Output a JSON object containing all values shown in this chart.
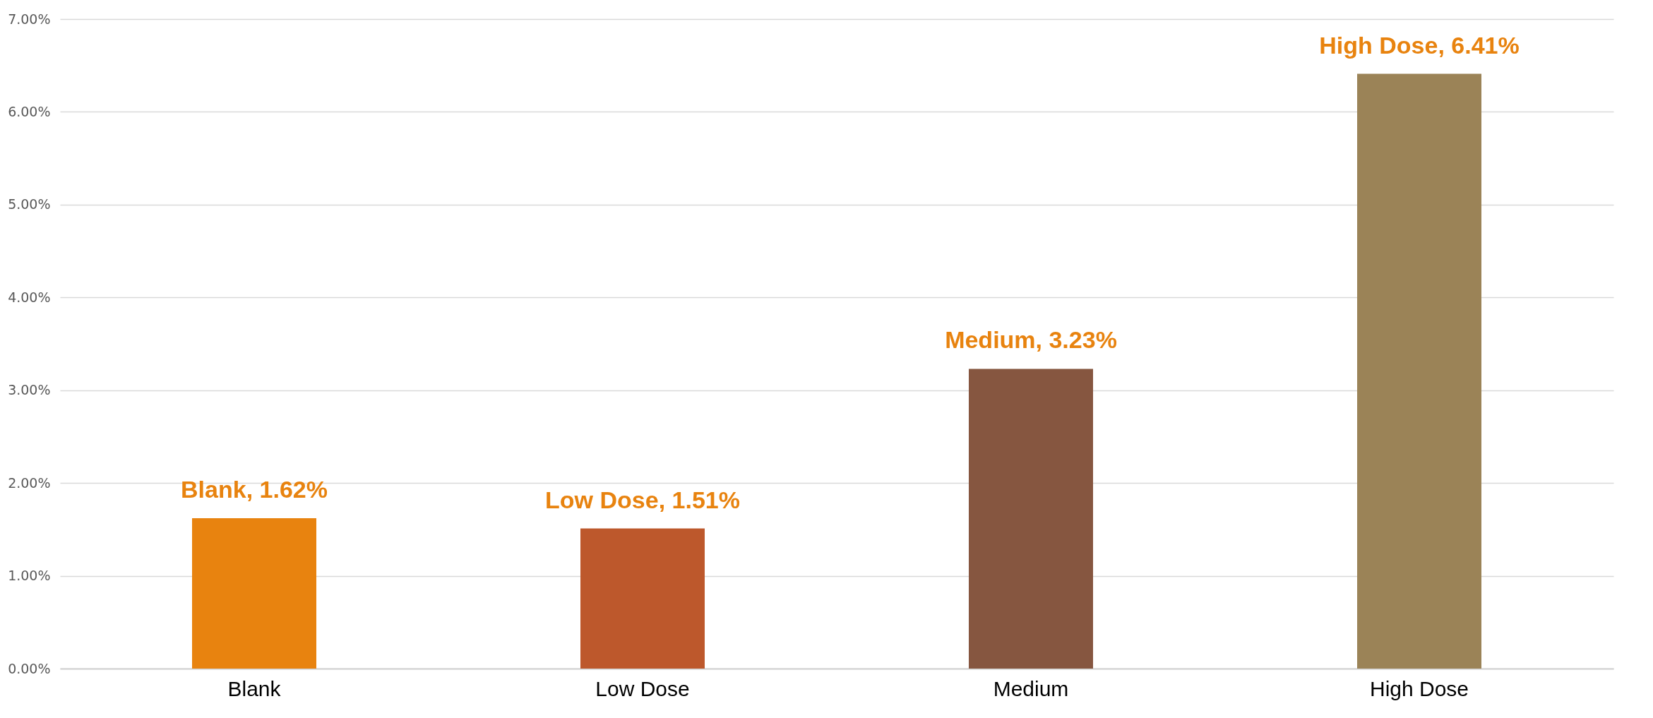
{
  "chart_data": {
    "type": "bar",
    "categories": [
      "Blank",
      "Low Dose",
      "Medium",
      "High Dose"
    ],
    "values": [
      1.62,
      1.51,
      3.23,
      6.41
    ],
    "colors": [
      "#e8830f",
      "#bd582c",
      "#865640",
      "#9b8357"
    ],
    "value_labels": [
      "Blank, 1.62%",
      "Low Dose, 1.51%",
      "Medium, 3.23%",
      "High Dose, 6.41%"
    ],
    "ylim": [
      0,
      7
    ],
    "yticks": [
      {
        "value": 0,
        "label": "0.00%"
      },
      {
        "value": 1,
        "label": "1.00%"
      },
      {
        "value": 2,
        "label": "2.00%"
      },
      {
        "value": 3,
        "label": "3.00%"
      },
      {
        "value": 4,
        "label": "4.00%"
      },
      {
        "value": 5,
        "label": "5.00%"
      },
      {
        "value": 6,
        "label": "6.00%"
      },
      {
        "value": 7,
        "label": "7.00%"
      }
    ],
    "grid": "y"
  }
}
